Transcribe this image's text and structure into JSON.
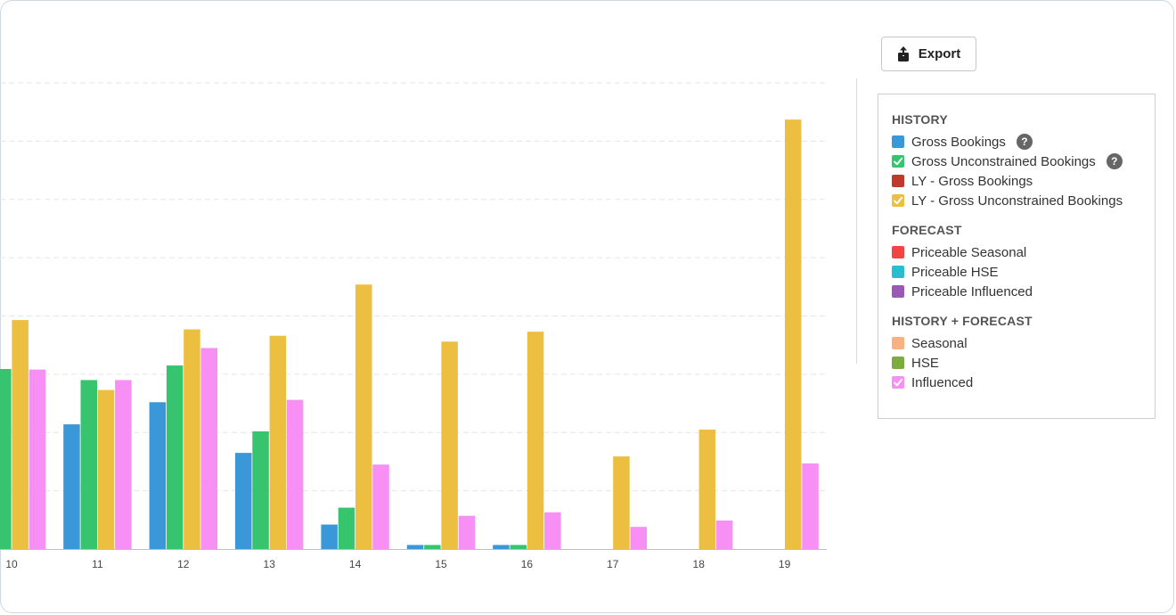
{
  "export_label": "Export",
  "legend": {
    "groups": [
      {
        "title": "HISTORY",
        "items": [
          {
            "label": "Gross Bookings",
            "color": "#3a98d8",
            "checked": false,
            "help": true
          },
          {
            "label": "Gross Unconstrained Bookings",
            "color": "#36c46f",
            "checked": true,
            "help": true
          },
          {
            "label": "LY - Gross Bookings",
            "color": "#c0392b",
            "checked": false,
            "help": false
          },
          {
            "label": "LY - Gross Unconstrained Bookings",
            "color": "#ecbf41",
            "checked": true,
            "help": false
          }
        ]
      },
      {
        "title": "FORECAST",
        "items": [
          {
            "label": "Priceable Seasonal",
            "color": "#f24443",
            "checked": false,
            "help": false
          },
          {
            "label": "Priceable HSE",
            "color": "#2bbcd0",
            "checked": false,
            "help": false
          },
          {
            "label": "Priceable Influenced",
            "color": "#9b59b6",
            "checked": false,
            "help": false
          }
        ]
      },
      {
        "title": "HISTORY + FORECAST",
        "items": [
          {
            "label": "Seasonal",
            "color": "#f9b183",
            "checked": false,
            "help": false
          },
          {
            "label": "HSE",
            "color": "#7dab3d",
            "checked": false,
            "help": false
          },
          {
            "label": "Influenced",
            "color": "#f78ff5",
            "checked": true,
            "help": false
          }
        ]
      }
    ],
    "help_glyph": "?"
  },
  "chart_data": {
    "type": "bar",
    "categories": [
      "10",
      "11",
      "12",
      "13",
      "14",
      "15",
      "16",
      "17",
      "18",
      "19"
    ],
    "ylim": [
      0,
      80
    ],
    "grid": true,
    "series": [
      {
        "name": "Gross Bookings",
        "color": "#3a98d8",
        "values": [
          null,
          21.4,
          25.2,
          16.5,
          4.2,
          0.7,
          0.7,
          0,
          0,
          0
        ]
      },
      {
        "name": "Gross Unconstrained Bookings",
        "color": "#36c46f",
        "values": [
          30.9,
          29.0,
          31.5,
          20.2,
          7.1,
          0.7,
          0.7,
          0,
          0,
          0
        ]
      },
      {
        "name": "LY - Gross Unconstrained Bookings",
        "color": "#ecbf41",
        "values": [
          39.3,
          27.3,
          37.7,
          36.6,
          45.4,
          35.6,
          37.3,
          15.9,
          20.5,
          73.7
        ]
      },
      {
        "name": "Influenced",
        "color": "#f78ff5",
        "values": [
          30.8,
          29.0,
          34.5,
          25.6,
          14.5,
          5.7,
          6.3,
          3.8,
          4.9,
          14.7
        ]
      }
    ]
  }
}
